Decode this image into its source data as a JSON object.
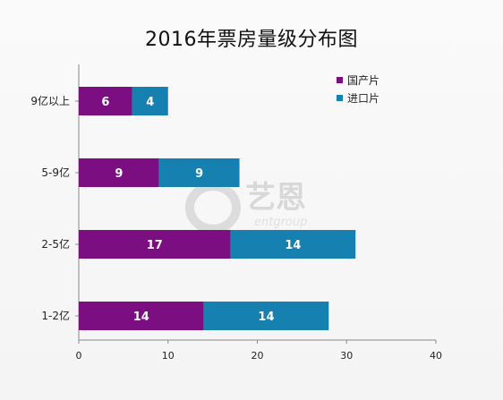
{
  "title": "2016年票房量级分布图",
  "watermark": {
    "text": "艺恩",
    "sub": "entgroup"
  },
  "chart_data": {
    "type": "bar",
    "orientation": "horizontal",
    "stacked": true,
    "title": "2016年票房量级分布图",
    "categories": [
      "9亿以上",
      "5-9亿",
      "2-5亿",
      "1-2亿"
    ],
    "series": [
      {
        "name": "国产片",
        "values": [
          6,
          9,
          17,
          14
        ],
        "color": "#7b0f82"
      },
      {
        "name": "进口片",
        "values": [
          4,
          9,
          14,
          14
        ],
        "color": "#1680b0"
      }
    ],
    "xlim": [
      0,
      40
    ],
    "xticks": [
      0,
      10,
      20,
      30,
      40
    ],
    "grid": false,
    "legend": "top-right"
  }
}
